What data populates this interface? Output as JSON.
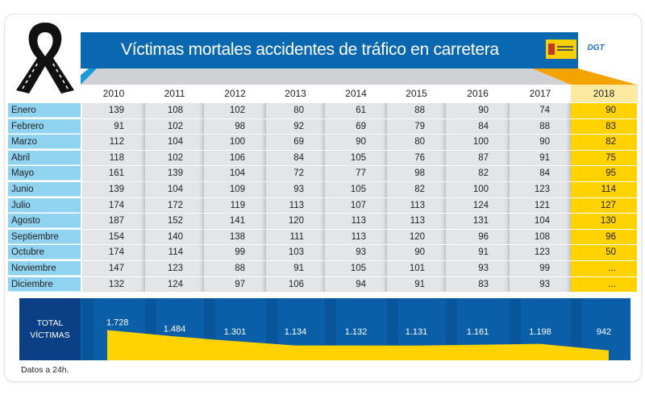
{
  "chart_data": {
    "type": "table",
    "title": "Víctimas mortales accidentes de tráfico en carretera",
    "columns": [
      "2010",
      "2011",
      "2012",
      "2013",
      "2014",
      "2015",
      "2016",
      "2017",
      "2018"
    ],
    "rows": [
      {
        "month": "Enero",
        "values": [
          "139",
          "108",
          "102",
          "80",
          "61",
          "88",
          "90",
          "74",
          "90"
        ]
      },
      {
        "month": "Febrero",
        "values": [
          "91",
          "102",
          "98",
          "92",
          "69",
          "79",
          "84",
          "88",
          "83"
        ]
      },
      {
        "month": "Marzo",
        "values": [
          "112",
          "104",
          "100",
          "69",
          "90",
          "80",
          "100",
          "90",
          "82"
        ]
      },
      {
        "month": "Abril",
        "values": [
          "118",
          "102",
          "106",
          "84",
          "105",
          "76",
          "87",
          "91",
          "75"
        ]
      },
      {
        "month": "Mayo",
        "values": [
          "161",
          "139",
          "104",
          "72",
          "77",
          "98",
          "82",
          "84",
          "95"
        ]
      },
      {
        "month": "Junio",
        "values": [
          "139",
          "104",
          "109",
          "93",
          "105",
          "82",
          "100",
          "123",
          "114"
        ]
      },
      {
        "month": "Julio",
        "values": [
          "174",
          "172",
          "119",
          "113",
          "107",
          "113",
          "124",
          "121",
          "127"
        ]
      },
      {
        "month": "Agosto",
        "values": [
          "187",
          "152",
          "141",
          "120",
          "113",
          "113",
          "131",
          "104",
          "130"
        ]
      },
      {
        "month": "Septiembre",
        "values": [
          "154",
          "140",
          "138",
          "111",
          "113",
          "120",
          "96",
          "108",
          "96"
        ]
      },
      {
        "month": "Octubre",
        "values": [
          "174",
          "114",
          "99",
          "103",
          "93",
          "90",
          "91",
          "123",
          "50"
        ]
      },
      {
        "month": "Noviembre",
        "values": [
          "147",
          "123",
          "88",
          "91",
          "105",
          "101",
          "93",
          "99",
          "..."
        ]
      },
      {
        "month": "Diciembre",
        "values": [
          "132",
          "124",
          "97",
          "106",
          "94",
          "91",
          "83",
          "93",
          "..."
        ]
      }
    ],
    "totals_label": [
      "TOTAL",
      "VÍCTIMAS"
    ],
    "totals": [
      "1.728",
      "1.484",
      "1.301",
      "1.134",
      "1.132",
      "1.131",
      "1.161",
      "1.198",
      "942"
    ],
    "totals_values": [
      1728,
      1484,
      1301,
      1134,
      1132,
      1131,
      1161,
      1198,
      942
    ],
    "note": "Datos a 24h.",
    "colors": {
      "banner": "#0a68b0",
      "months": "#8fd3f0",
      "highlight": "#ffd200",
      "totals_band": "#0a5fa8",
      "totals_label": "#0b3f86",
      "area": "#ffd200"
    }
  },
  "logos": {
    "dgt": "DGT"
  }
}
